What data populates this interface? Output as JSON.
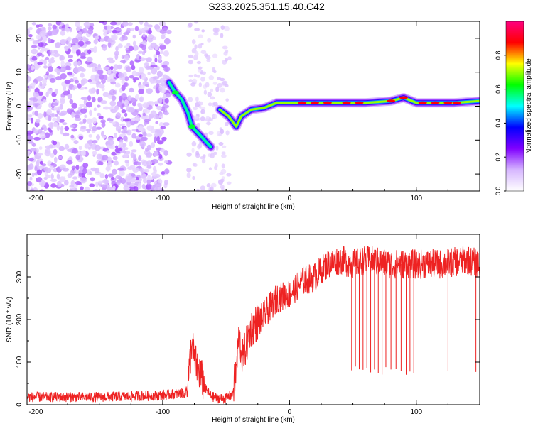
{
  "page": {
    "title": "S233.2025.351.15.40.C42"
  },
  "chart_data": [
    {
      "type": "heatmap",
      "xlabel": "Height of straight line (km)",
      "ylabel": "Frequency (Hz)",
      "xlim": [
        -207,
        150
      ],
      "ylim": [
        -25,
        25
      ],
      "xticks": [
        -200,
        -100,
        0,
        100
      ],
      "yticks": [
        -20,
        -10,
        0,
        10,
        20
      ],
      "colorbar": {
        "label": "Normalized spectral amplitude",
        "range": [
          0,
          1
        ],
        "ticks": [
          "0.0",
          "0.2",
          "0.4",
          "0.6",
          "0.8"
        ],
        "tick_values": [
          0,
          0.2,
          0.4,
          0.6,
          0.8
        ],
        "colormap": [
          "#ffffff",
          "#d6b6ff",
          "#8000ff",
          "#0000ff",
          "#00ffff",
          "#00ff00",
          "#ffff00",
          "#ff0000",
          "#ff0080"
        ]
      },
      "description_features": {
        "noise_region_x": [
          -207,
          -95
        ],
        "sparse_noise_x": [
          -80,
          -47
        ],
        "descending_branch": [
          [
            -95,
            7
          ],
          [
            -90,
            4
          ],
          [
            -85,
            2
          ],
          [
            -80,
            -2
          ],
          [
            -77,
            -6
          ],
          [
            -72,
            -8
          ],
          [
            -67,
            -10
          ],
          [
            -62,
            -12
          ]
        ],
        "main_branch": [
          [
            -55,
            -1
          ],
          [
            -48,
            -3
          ],
          [
            -42,
            -6
          ],
          [
            -38,
            -3
          ],
          [
            -30,
            -1
          ],
          [
            -20,
            -0.5
          ],
          [
            -10,
            1
          ],
          [
            0,
            1
          ],
          [
            20,
            1
          ],
          [
            60,
            1
          ],
          [
            80,
            1.5
          ],
          [
            90,
            2.5
          ],
          [
            100,
            1
          ],
          [
            130,
            1
          ],
          [
            150,
            1.5
          ]
        ]
      }
    },
    {
      "type": "line",
      "xlabel": "Height of straight line (km)",
      "ylabel": "SNR (10 * v/v)",
      "xlim": [
        -207,
        150
      ],
      "ylim": [
        0,
        400
      ],
      "xticks": [
        -200,
        -100,
        0,
        100
      ],
      "yticks": [
        0,
        100,
        200,
        300
      ],
      "color": "#ee2222",
      "series": [
        {
          "name": "SNR",
          "x": [
            -207,
            -150,
            -100,
            -82,
            -79,
            -77,
            -75,
            -73,
            -70,
            -67,
            -62,
            -57,
            -50,
            -45,
            -42,
            -40,
            -37,
            -30,
            -20,
            -10,
            0,
            10,
            20,
            30,
            40,
            50,
            60,
            80,
            100,
            120,
            140,
            150
          ],
          "y": [
            18,
            18,
            22,
            28,
            80,
            150,
            105,
            90,
            70,
            40,
            20,
            15,
            15,
            25,
            80,
            160,
            110,
            180,
            210,
            250,
            260,
            290,
            300,
            330,
            340,
            330,
            340,
            330,
            330,
            330,
            340,
            330
          ]
        }
      ],
      "dropouts_x": [
        49,
        52,
        55,
        58,
        61,
        64,
        67,
        70,
        73,
        76,
        80,
        84,
        88,
        92,
        95,
        98,
        125,
        147
      ]
    }
  ]
}
